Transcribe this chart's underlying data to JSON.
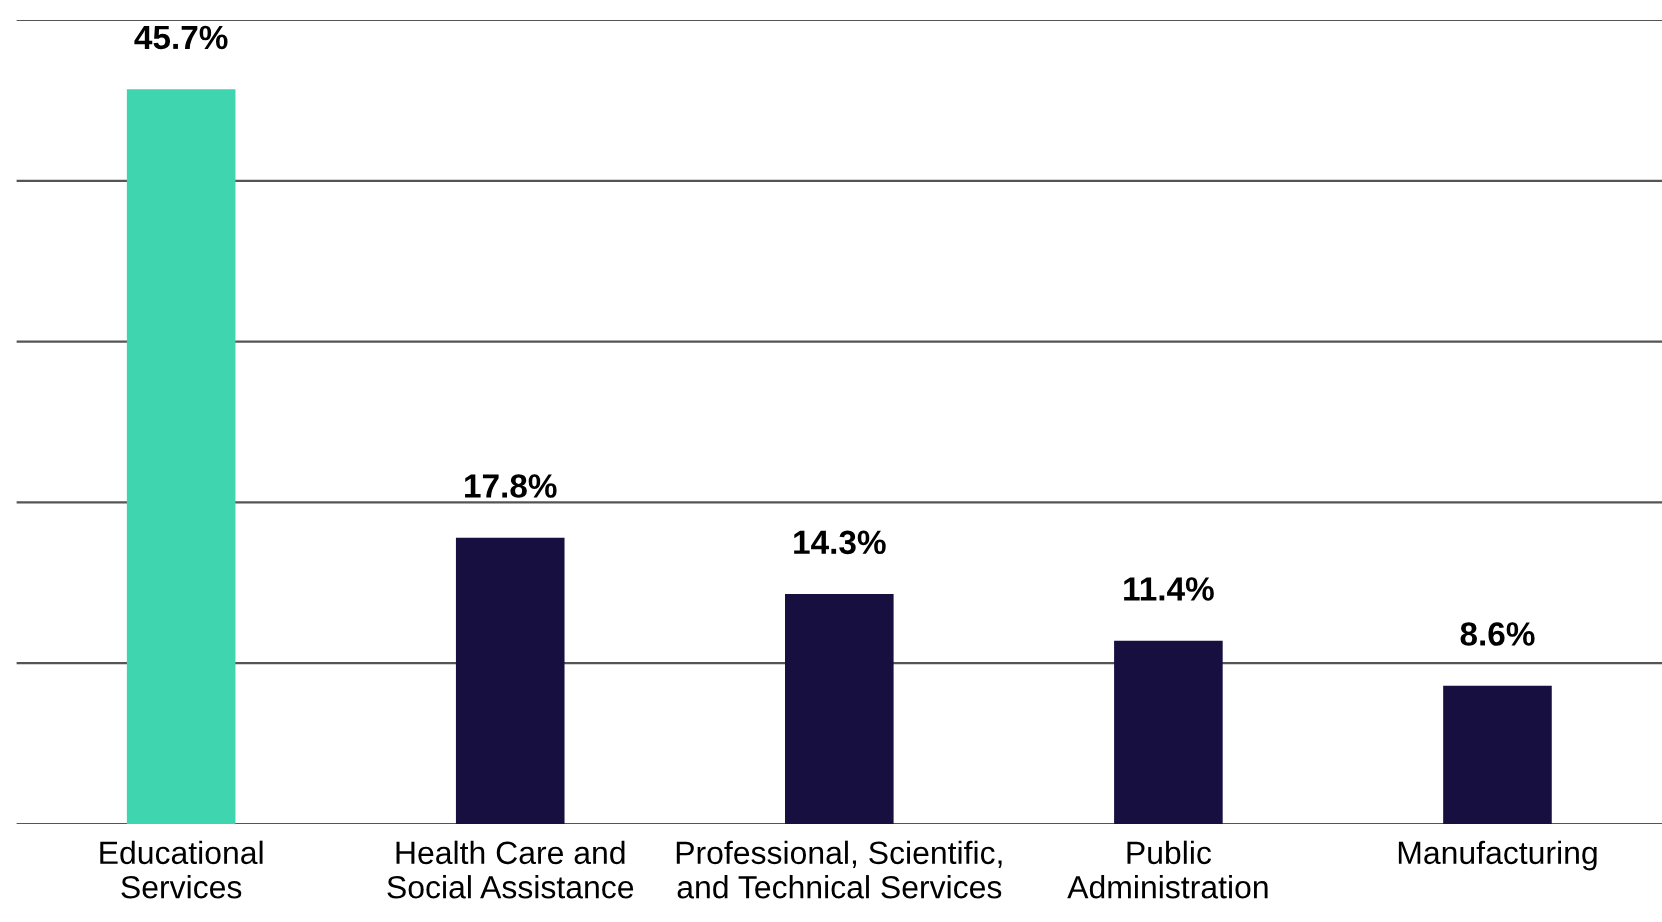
{
  "chart_data": {
    "type": "bar",
    "categories": [
      "Educational\nServices",
      "Health Care and\nSocial Assistance",
      "Professional, Scientific,\nand Technical Services",
      "Public\nAdministration",
      "Manufacturing"
    ],
    "values": [
      45.7,
      17.8,
      14.3,
      11.4,
      8.6
    ],
    "value_labels": [
      "45.7%",
      "17.8%",
      "14.3%",
      "11.4%",
      "8.6%"
    ],
    "colors": [
      "#3fd5ae",
      "#170f40",
      "#170f40",
      "#170f40",
      "#170f40"
    ],
    "ylim": [
      0,
      50
    ],
    "yticks": [
      {
        "value": 0,
        "label": null
      },
      {
        "value": 10,
        "label": null
      },
      {
        "value": 20,
        "label": null
      },
      {
        "value": 30,
        "label": null
      },
      {
        "value": 40,
        "label": null
      },
      {
        "value": 50,
        "label": null
      }
    ],
    "grid": "y",
    "tick_labels": "x"
  }
}
